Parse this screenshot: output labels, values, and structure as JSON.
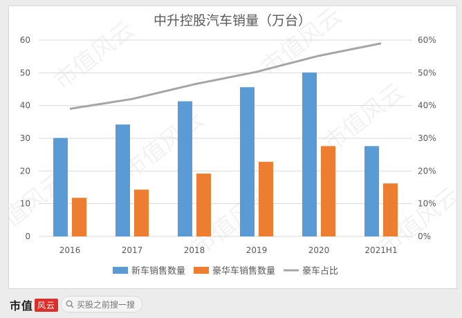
{
  "chart_data": {
    "type": "bar",
    "title": "中升控股汽车销量（万台）",
    "categories": [
      "2016",
      "2017",
      "2018",
      "2019",
      "2020",
      "2021H1"
    ],
    "series": [
      {
        "name": "新车销售数量",
        "kind": "bar",
        "axis": "left",
        "color": "#5b9bd5",
        "values": [
          30.1,
          34.2,
          41.3,
          45.6,
          50.1,
          27.6
        ]
      },
      {
        "name": "豪华车销售数量",
        "kind": "bar",
        "axis": "left",
        "color": "#ed7d31",
        "values": [
          11.8,
          14.3,
          19.2,
          22.8,
          27.6,
          16.2
        ]
      },
      {
        "name": "豪车占比",
        "kind": "line",
        "axis": "right",
        "color": "#a5a5a5",
        "values": [
          0.39,
          0.42,
          0.465,
          0.503,
          0.552,
          0.59
        ]
      }
    ],
    "ylim": [
      0,
      60
    ],
    "y_ticks": [
      "0",
      "10",
      "20",
      "30",
      "40",
      "50",
      "60"
    ],
    "y2lim": [
      0,
      0.6
    ],
    "y2_ticks": [
      "0%",
      "10%",
      "20%",
      "30%",
      "40%",
      "50%",
      "60%"
    ],
    "grid": true,
    "legend": "bottom"
  },
  "watermark": "市值风云",
  "footer": {
    "brand": "市值",
    "brand_badge": "风云",
    "search_placeholder": "买股之前搜一搜"
  },
  "colors": {
    "grid": "#d9d9d9",
    "axis_text": "#595959",
    "title": "#595959"
  }
}
